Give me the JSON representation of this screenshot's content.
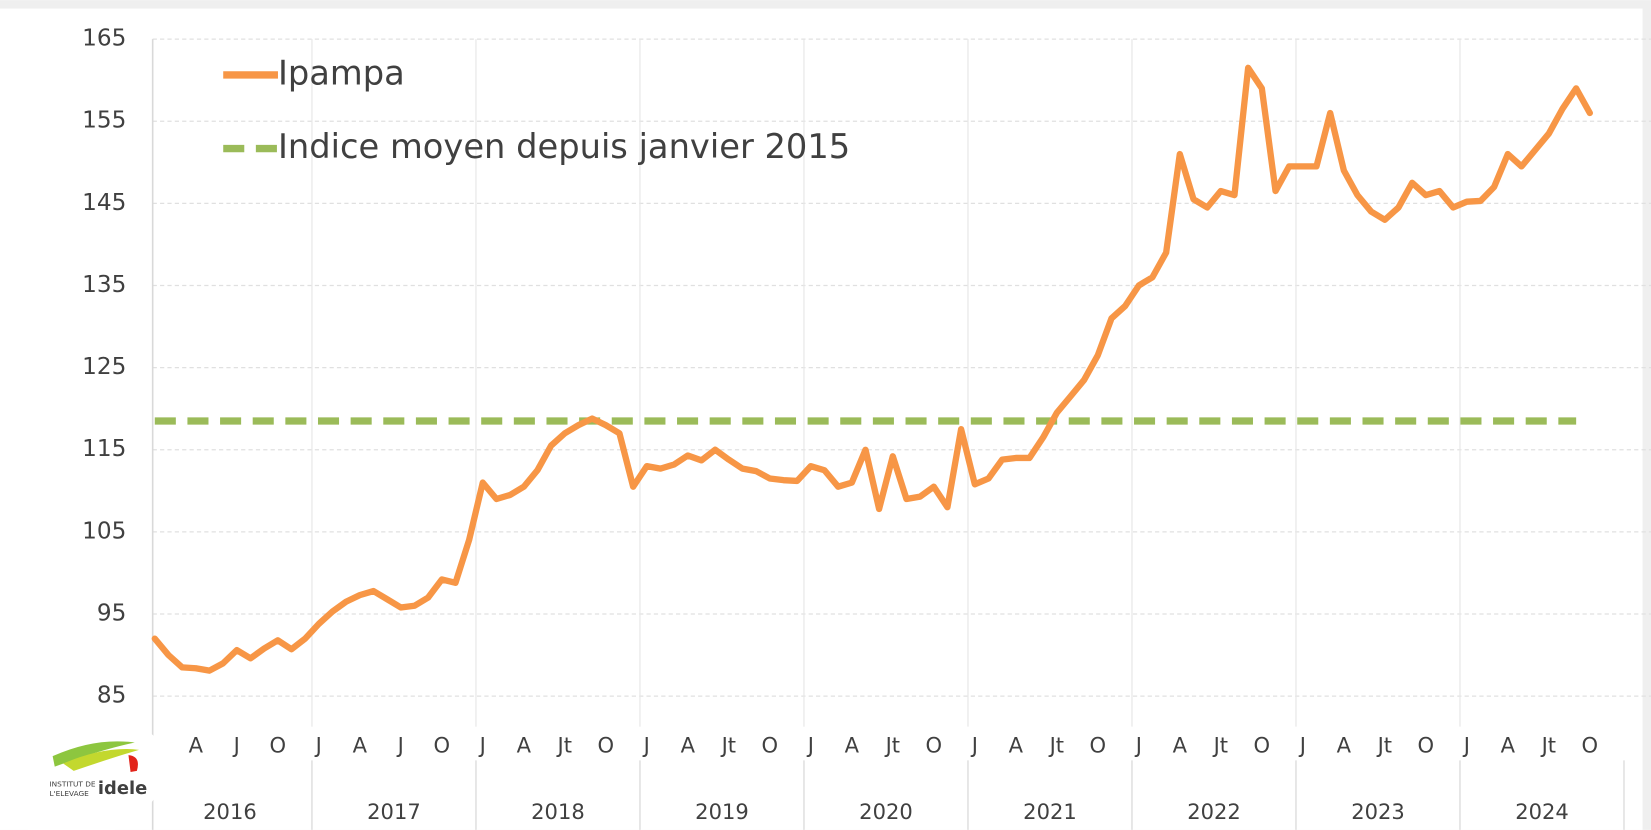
{
  "chart_data": {
    "type": "line",
    "categories": [
      null,
      null,
      null,
      "A",
      null,
      null,
      "J",
      null,
      null,
      "O",
      null,
      null,
      "J",
      null,
      null,
      "A",
      null,
      null,
      "J",
      null,
      null,
      "O",
      null,
      null,
      "J",
      null,
      null,
      "A",
      null,
      null,
      "Jt",
      null,
      null,
      "O",
      null,
      null,
      "J",
      null,
      null,
      "A",
      null,
      null,
      "Jt",
      null,
      null,
      "O",
      null,
      null,
      "J",
      null,
      null,
      "A",
      null,
      null,
      "Jt",
      null,
      null,
      "O",
      null,
      null,
      "J",
      null,
      null,
      "A",
      null,
      null,
      "Jt",
      null,
      null,
      "O",
      null,
      null,
      "J",
      null,
      null,
      "A",
      null,
      null,
      "Jt",
      null,
      null,
      "O",
      null,
      null,
      "J",
      null,
      null,
      "A",
      null,
      null,
      "Jt",
      null,
      null,
      "O",
      null,
      null,
      "J",
      null,
      null,
      "A",
      null,
      null,
      "Jt",
      null,
      null,
      "O"
    ],
    "years": [
      "2016",
      "2017",
      "2018",
      "2019",
      "2020",
      "2021",
      "2022",
      "2023",
      "2024"
    ],
    "series": [
      {
        "name": "Ipampa",
        "color": "#f79646",
        "values": [
          92,
          90,
          88.5,
          88.4,
          88.1,
          89,
          90.6,
          89.6,
          90.8,
          91.8,
          90.7,
          92,
          93.8,
          95.3,
          96.5,
          97.3,
          97.8,
          96.8,
          95.8,
          96,
          97,
          99.2,
          98.8,
          104,
          111,
          109,
          109.5,
          110.5,
          112.5,
          115.5,
          117,
          118,
          118.8,
          118,
          117,
          110.5,
          113,
          112.7,
          113.2,
          114.3,
          113.7,
          115,
          113.8,
          112.7,
          112.4,
          111.5,
          111.3,
          111.2,
          113,
          112.5,
          110.5,
          111,
          115,
          107.8,
          114.2,
          109,
          109.3,
          110.5,
          108,
          117.5,
          110.8,
          111.5,
          113.8,
          114,
          114,
          116.5,
          119.5,
          121.5,
          123.5,
          126.5,
          131,
          132.5,
          135,
          136,
          139,
          151,
          145.5,
          144.5,
          146.5,
          146,
          161.5,
          159,
          146.5,
          149.5,
          149.5,
          149.5,
          156,
          149,
          146,
          144,
          143,
          144.5,
          147.5,
          146,
          146.5,
          144.5,
          145.2,
          145.3,
          147,
          151,
          149.5,
          151.5,
          153.5,
          156.5,
          159,
          156
        ]
      }
    ],
    "reference_line": {
      "name": "Indice moyen depuis janvier 2015",
      "value": 118.5,
      "color": "#9bbb59",
      "dashed": true
    },
    "ylim": [
      85,
      165
    ],
    "yticks": [
      85,
      95,
      105,
      115,
      125,
      135,
      145,
      155,
      165
    ],
    "grid": true,
    "legend": "top-left"
  },
  "logo": {
    "line1": "INSTITUT DE",
    "line2": "L'ELEVAGE",
    "brand": "idele"
  }
}
